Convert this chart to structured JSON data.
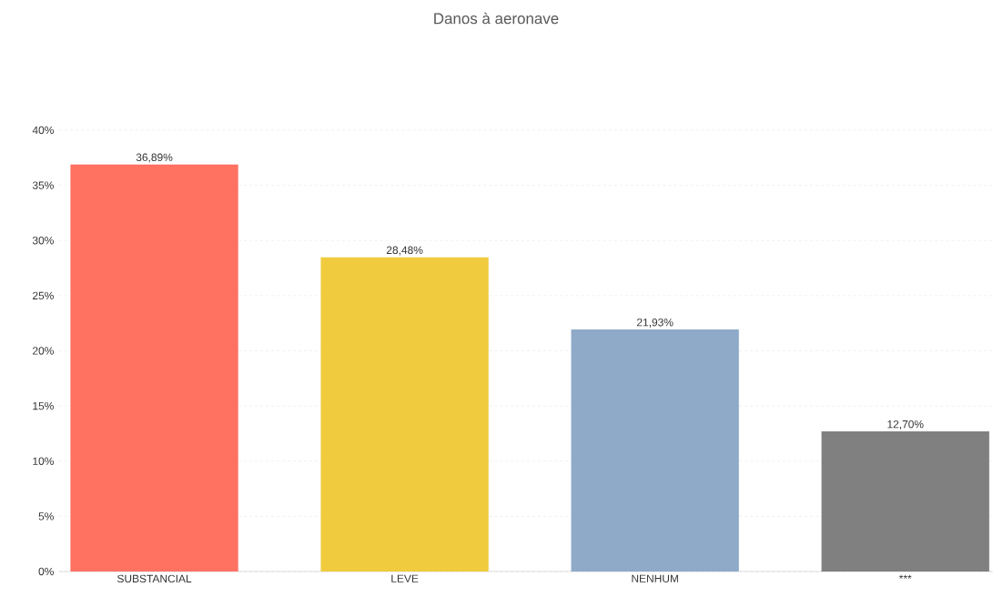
{
  "chart_data": {
    "type": "bar",
    "title": "Danos à aeronave",
    "categories": [
      "SUBSTANCIAL",
      "LEVE",
      "NENHUM",
      "***"
    ],
    "values": [
      36.89,
      28.48,
      21.93,
      12.7
    ],
    "value_labels": [
      "36,89%",
      "28,48%",
      "21,93%",
      "12,70%"
    ],
    "colors": [
      "#ff7262",
      "#f0cb3e",
      "#8eaac8",
      "#808080"
    ],
    "ylim": [
      0,
      40
    ],
    "yticks": [
      {
        "value": 0,
        "label": "0%"
      },
      {
        "value": 5,
        "label": "5%"
      },
      {
        "value": 10,
        "label": "10%"
      },
      {
        "value": 15,
        "label": "15%"
      },
      {
        "value": 20,
        "label": "20%"
      },
      {
        "value": 25,
        "label": "25%"
      },
      {
        "value": 30,
        "label": "30%"
      },
      {
        "value": 35,
        "label": "35%"
      },
      {
        "value": 40,
        "label": "40%"
      }
    ],
    "grid": "y"
  }
}
